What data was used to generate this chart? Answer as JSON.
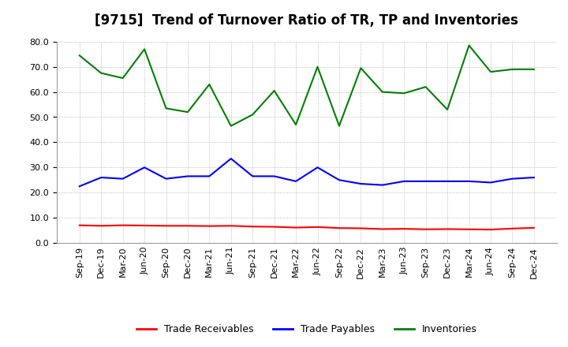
{
  "title": "[9715]  Trend of Turnover Ratio of TR, TP and Inventories",
  "x_labels": [
    "Sep-19",
    "Dec-19",
    "Mar-20",
    "Jun-20",
    "Sep-20",
    "Dec-20",
    "Mar-21",
    "Jun-21",
    "Sep-21",
    "Dec-21",
    "Mar-22",
    "Jun-22",
    "Sep-22",
    "Dec-22",
    "Mar-23",
    "Jun-23",
    "Sep-23",
    "Dec-23",
    "Mar-24",
    "Jun-24",
    "Sep-24",
    "Dec-24"
  ],
  "trade_receivables": [
    7.0,
    6.8,
    7.0,
    6.9,
    6.8,
    6.8,
    6.7,
    6.8,
    6.5,
    6.4,
    6.1,
    6.3,
    5.9,
    5.8,
    5.5,
    5.6,
    5.4,
    5.5,
    5.4,
    5.3,
    5.7,
    6.0
  ],
  "trade_payables": [
    22.5,
    26.0,
    25.5,
    30.0,
    25.5,
    26.5,
    26.5,
    33.5,
    26.5,
    26.5,
    24.5,
    30.0,
    25.0,
    23.5,
    23.0,
    24.5,
    24.5,
    24.5,
    24.5,
    24.0,
    25.5,
    26.0
  ],
  "inventories": [
    74.5,
    67.5,
    65.5,
    77.0,
    53.5,
    52.0,
    63.0,
    46.5,
    51.0,
    60.5,
    47.0,
    70.0,
    46.5,
    69.5,
    60.0,
    59.5,
    62.0,
    53.0,
    78.5,
    68.0,
    69.0,
    69.0
  ],
  "ylim": [
    0.0,
    80.0
  ],
  "yticks": [
    0.0,
    10.0,
    20.0,
    30.0,
    40.0,
    50.0,
    60.0,
    70.0,
    80.0
  ],
  "color_tr": "#FF0000",
  "color_tp": "#0000FF",
  "color_inv": "#008000",
  "legend_labels": [
    "Trade Receivables",
    "Trade Payables",
    "Inventories"
  ],
  "bg_color": "#FFFFFF",
  "grid_color": "#AAAAAA",
  "title_fontsize": 12,
  "tick_fontsize": 8,
  "legend_fontsize": 9
}
